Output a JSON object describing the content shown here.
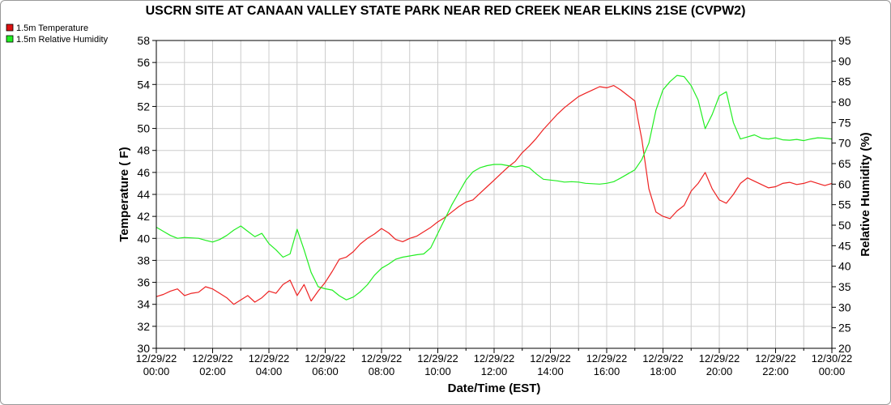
{
  "chart_data": {
    "type": "line",
    "title": "USCRN SITE AT CANAAN VALLEY STATE PARK NEAR RED CREEK NEAR ELKINS 21SE (CVPW2)",
    "xlabel": "Date/Time (EST)",
    "ylabel": "Temperature ( F)",
    "y2label": "Relative Humidity (%)",
    "xlim": [
      0,
      24
    ],
    "ylim": [
      30,
      58
    ],
    "y2lim": [
      20,
      95
    ],
    "grid": true,
    "legend_position": "top-left",
    "x_tick_dates": [
      "12/29/22",
      "12/29/22",
      "12/29/22",
      "12/29/22",
      "12/29/22",
      "12/29/22",
      "12/29/22",
      "12/29/22",
      "12/29/22",
      "12/29/22",
      "12/29/22",
      "12/29/22",
      "12/30/22"
    ],
    "x_tick_times": [
      "00:00",
      "02:00",
      "04:00",
      "06:00",
      "08:00",
      "10:00",
      "12:00",
      "14:00",
      "16:00",
      "18:00",
      "20:00",
      "22:00",
      "00:00"
    ],
    "y_ticks": [
      "30",
      "32",
      "34",
      "36",
      "38",
      "40",
      "42",
      "44",
      "46",
      "48",
      "50",
      "52",
      "54",
      "56",
      "58"
    ],
    "y2_ticks": [
      "20",
      "25",
      "30",
      "35",
      "40",
      "45",
      "50",
      "55",
      "60",
      "65",
      "70",
      "75",
      "80",
      "85",
      "90",
      "95"
    ],
    "series": [
      {
        "name": "1.5m Temperature",
        "axis": "left",
        "color": "#ee2222",
        "x": [
          0.0,
          0.25,
          0.5,
          0.75,
          1.0,
          1.25,
          1.5,
          1.75,
          2.0,
          2.25,
          2.5,
          2.75,
          3.0,
          3.25,
          3.5,
          3.75,
          4.0,
          4.25,
          4.5,
          4.75,
          5.0,
          5.25,
          5.5,
          5.75,
          6.0,
          6.25,
          6.5,
          6.75,
          7.0,
          7.25,
          7.5,
          7.75,
          8.0,
          8.25,
          8.5,
          8.75,
          9.0,
          9.25,
          9.5,
          9.75,
          10.0,
          10.25,
          10.5,
          10.75,
          11.0,
          11.25,
          11.5,
          11.75,
          12.0,
          12.25,
          12.5,
          12.75,
          13.0,
          13.25,
          13.5,
          13.75,
          14.0,
          14.25,
          14.5,
          14.75,
          15.0,
          15.25,
          15.5,
          15.75,
          16.0,
          16.25,
          16.5,
          16.75,
          17.0,
          17.1,
          17.25,
          17.5,
          17.75,
          18.0,
          18.25,
          18.5,
          18.75,
          19.0,
          19.25,
          19.5,
          19.75,
          20.0,
          20.25,
          20.5,
          20.75,
          21.0,
          21.25,
          21.5,
          21.75,
          22.0,
          22.25,
          22.5,
          22.75,
          23.0,
          23.25,
          23.5,
          23.75,
          24.0
        ],
        "values": [
          34.7,
          34.9,
          35.2,
          35.4,
          34.8,
          35.0,
          35.1,
          35.6,
          35.4,
          35.0,
          34.6,
          34.0,
          34.4,
          34.8,
          34.2,
          34.6,
          35.2,
          35.0,
          35.8,
          36.2,
          34.8,
          35.8,
          34.3,
          35.2,
          36.0,
          37.0,
          38.1,
          38.3,
          38.8,
          39.5,
          40.0,
          40.4,
          40.9,
          40.5,
          39.9,
          39.7,
          40.0,
          40.2,
          40.6,
          41.0,
          41.5,
          41.9,
          42.4,
          42.9,
          43.3,
          43.5,
          44.1,
          44.7,
          45.3,
          45.9,
          46.5,
          47.0,
          47.8,
          48.4,
          49.1,
          49.9,
          50.6,
          51.3,
          51.9,
          52.4,
          52.9,
          53.2,
          53.5,
          53.8,
          53.7,
          53.9,
          53.5,
          53.0,
          52.5,
          51.0,
          49.0,
          44.5,
          42.4,
          42.0,
          41.8,
          42.5,
          43.0,
          44.3,
          45.0,
          46.0,
          44.5,
          43.5,
          43.2,
          44.0,
          45.0,
          45.5,
          45.2,
          44.9,
          44.6,
          44.7,
          45.0,
          45.1,
          44.9,
          45.0,
          45.2,
          45.0,
          44.8,
          45.0
        ]
      },
      {
        "name": "1.5m Relative Humidity",
        "axis": "right",
        "color": "#22ee22",
        "x": [
          0.0,
          0.25,
          0.5,
          0.75,
          1.0,
          1.25,
          1.5,
          1.75,
          2.0,
          2.25,
          2.5,
          2.75,
          3.0,
          3.25,
          3.5,
          3.75,
          4.0,
          4.25,
          4.5,
          4.75,
          5.0,
          5.25,
          5.5,
          5.75,
          6.0,
          6.25,
          6.5,
          6.75,
          7.0,
          7.25,
          7.5,
          7.75,
          8.0,
          8.25,
          8.5,
          8.75,
          9.0,
          9.25,
          9.5,
          9.75,
          10.0,
          10.25,
          10.5,
          10.75,
          11.0,
          11.25,
          11.5,
          11.75,
          12.0,
          12.25,
          12.5,
          12.75,
          13.0,
          13.25,
          13.5,
          13.75,
          14.0,
          14.25,
          14.5,
          14.75,
          15.0,
          15.25,
          15.5,
          15.75,
          16.0,
          16.25,
          16.5,
          16.75,
          17.0,
          17.25,
          17.5,
          17.75,
          18.0,
          18.25,
          18.5,
          18.75,
          19.0,
          19.25,
          19.5,
          19.75,
          20.0,
          20.25,
          20.5,
          20.75,
          21.0,
          21.25,
          21.5,
          21.75,
          22.0,
          22.25,
          22.5,
          22.75,
          23.0,
          23.25,
          23.5,
          23.75,
          24.0
        ],
        "values": [
          49.5,
          48.5,
          47.5,
          46.8,
          47.0,
          46.9,
          46.8,
          46.3,
          45.9,
          46.5,
          47.5,
          48.8,
          49.8,
          48.5,
          47.2,
          48.0,
          45.5,
          44.0,
          42.2,
          43.0,
          49.0,
          44.0,
          38.5,
          35.0,
          34.5,
          34.2,
          32.8,
          31.8,
          32.5,
          33.8,
          35.5,
          37.8,
          39.5,
          40.5,
          41.7,
          42.2,
          42.5,
          42.8,
          43.0,
          44.5,
          48.0,
          51.5,
          55.0,
          58.0,
          61.0,
          63.0,
          64.0,
          64.5,
          64.8,
          64.8,
          64.5,
          64.2,
          64.5,
          64.0,
          62.5,
          61.2,
          61.0,
          60.8,
          60.5,
          60.6,
          60.5,
          60.2,
          60.1,
          60.0,
          60.2,
          60.6,
          61.5,
          62.5,
          63.5,
          66.0,
          70.0,
          78.0,
          83.0,
          85.0,
          86.5,
          86.2,
          84.0,
          80.5,
          73.5,
          77.0,
          81.5,
          82.5,
          75.0,
          71.0,
          71.5,
          72.0,
          71.2,
          71.0,
          71.3,
          70.8,
          70.7,
          70.9,
          70.6,
          71.0,
          71.3,
          71.2,
          71.0
        ]
      }
    ]
  },
  "legend": {
    "items": [
      {
        "label": "1.5m Temperature",
        "color": "#dd1111"
      },
      {
        "label": "1.5m Relative Humidity",
        "color": "#22ee22"
      }
    ]
  }
}
